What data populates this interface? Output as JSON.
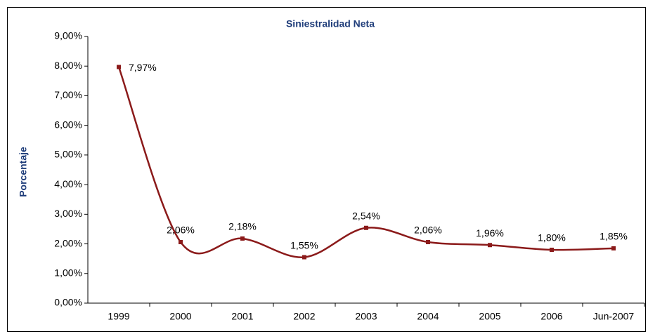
{
  "chart_data": {
    "type": "line",
    "title": "Siniestralidad Neta",
    "y_label": "Porcentaje",
    "categories": [
      "1999",
      "2000",
      "2001",
      "2002",
      "2003",
      "2004",
      "2005",
      "2006",
      "Jun-2007"
    ],
    "series": [
      {
        "name": "Siniestralidad Neta",
        "color": "#8b1a1a",
        "values": [
          7.97,
          2.06,
          2.18,
          1.55,
          2.54,
          2.06,
          1.96,
          1.8,
          1.85
        ],
        "value_labels": [
          "7,97%",
          "2,06%",
          "2,18%",
          "1,55%",
          "2,54%",
          "2,06%",
          "1,96%",
          "1,80%",
          "1,85%"
        ]
      }
    ],
    "ylim": [
      0,
      9
    ],
    "yticks": [
      {
        "value": 0,
        "label": "0,00%"
      },
      {
        "value": 1,
        "label": "1,00%"
      },
      {
        "value": 2,
        "label": "2,00%"
      },
      {
        "value": 3,
        "label": "3,00%"
      },
      {
        "value": 4,
        "label": "4,00%"
      },
      {
        "value": 5,
        "label": "5,00%"
      },
      {
        "value": 6,
        "label": "6,00%"
      },
      {
        "value": 7,
        "label": "7,00%"
      },
      {
        "value": 8,
        "label": "8,00%"
      },
      {
        "value": 9,
        "label": "9,00%"
      }
    ],
    "smooth": true
  }
}
